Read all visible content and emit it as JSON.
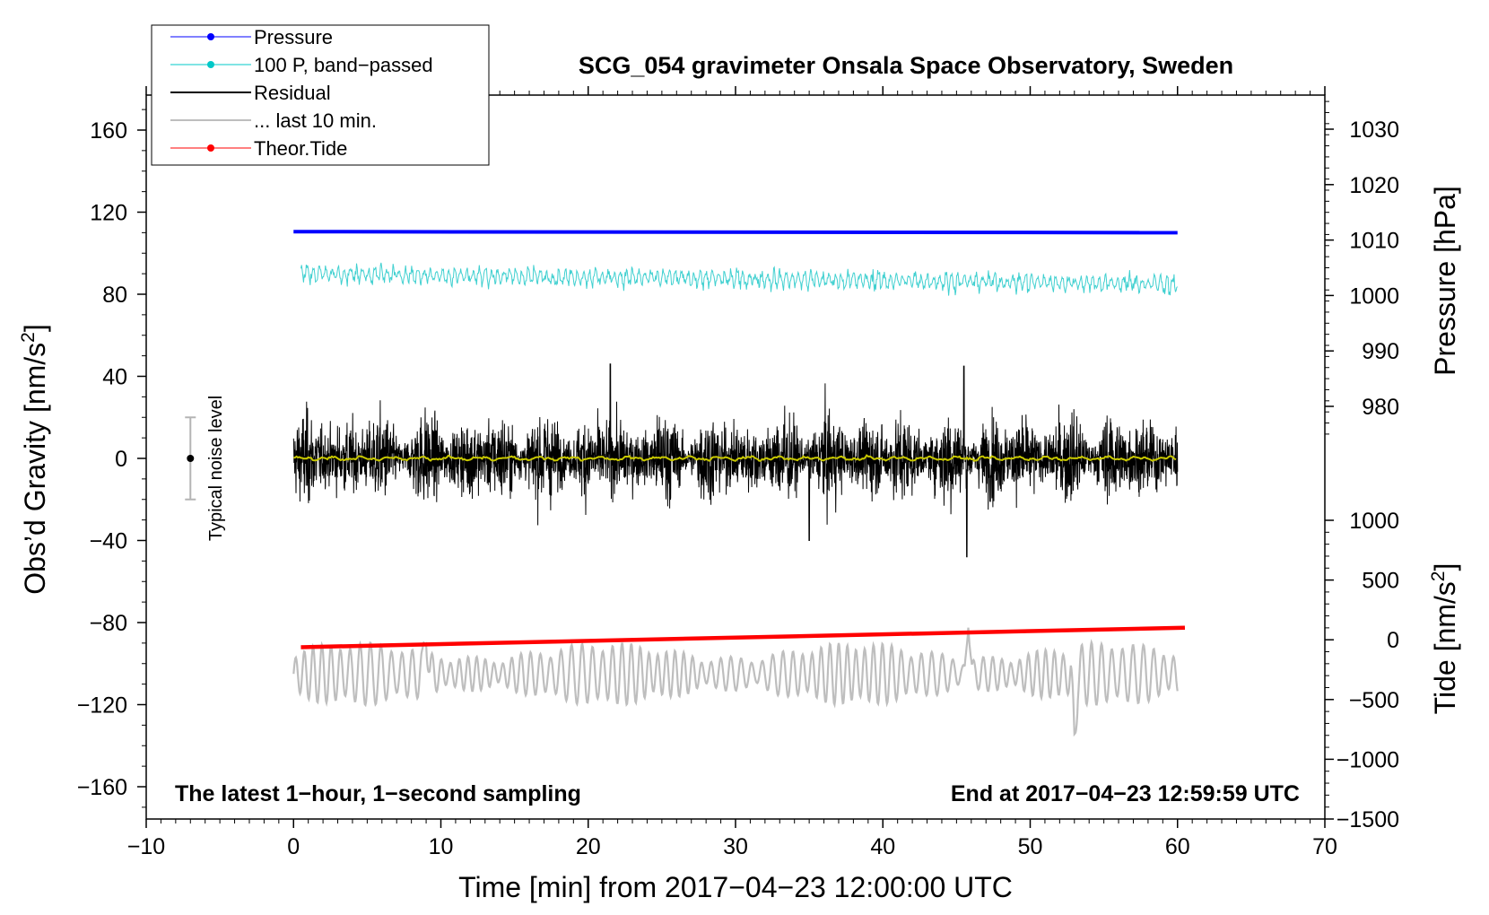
{
  "chart_data": {
    "type": "line",
    "title": "SCG_054 gravimeter Onsala Space Observatory, Sweden",
    "xlabel": "Time [min] from 2017−04−23 12:00:00 UTC",
    "ylabel_left_main": "Obs’d Gravity [nm/s",
    "ylabel_left_sup": "2",
    "ylabel_left_end": "]",
    "ylabel_right_pressure": "Pressure [hPa]",
    "ylabel_right_tide_main": "Tide [nm/s",
    "ylabel_right_tide_sup": "2",
    "ylabel_right_tide_end": "]",
    "xlim": [
      -10,
      70
    ],
    "ylim_left": [
      -175,
      180
    ],
    "x_ticks": [
      -10,
      0,
      10,
      20,
      30,
      40,
      50,
      60,
      70
    ],
    "x_tick_labels": [
      "−10",
      "0",
      "10",
      "20",
      "30",
      "40",
      "50",
      "60",
      "70"
    ],
    "y_left_ticks": [
      160,
      120,
      80,
      40,
      0,
      -40,
      -80,
      -120,
      -160
    ],
    "y_left_tick_labels": [
      "160",
      "120",
      "80",
      "40",
      "0",
      "−40",
      "−80",
      "−120",
      "−160"
    ],
    "pressure_ticks": [
      1030,
      1020,
      1010,
      1000,
      990,
      980
    ],
    "pressure_tick_labels": [
      "1030",
      "1020",
      "1010",
      "1000",
      "990",
      "980"
    ],
    "tide_ticks": [
      1000,
      500,
      0,
      -500,
      -1000,
      -1500
    ],
    "tide_tick_labels": [
      "1000",
      "500",
      "0",
      "−500",
      "−1000",
      "−1500"
    ],
    "annotation_left": "The latest 1−hour, 1−second sampling",
    "annotation_right": "End at 2017−04−23 12:59:59 UTC",
    "noise_label": "Typical noise level",
    "noise_bar": {
      "x": -7,
      "center": 0,
      "half_range": 20
    },
    "legend": [
      {
        "label": "Pressure",
        "color": "#0000ff",
        "marker": true
      },
      {
        "label": "100 P, band−passed",
        "color": "#00c8c8",
        "marker": true
      },
      {
        "label": "Residual",
        "color": "#000000",
        "marker": false
      },
      {
        "label": "... last 10 min.",
        "color": "#bebebe",
        "marker": false
      },
      {
        "label": "Theor.Tide",
        "color": "#ff0000",
        "marker": true
      }
    ],
    "series": [
      {
        "name": "Pressure",
        "color": "#0000ff",
        "x_range": [
          0,
          60
        ],
        "level_nm_s2": 110.5,
        "level_end": 110.0
      },
      {
        "name": "100 P, band-passed",
        "color": "#40d0d0",
        "x_range": [
          0.5,
          60
        ],
        "mean_start": 90,
        "mean_end": 85,
        "amplitude": 5
      },
      {
        "name": "Residual",
        "color": "#000000",
        "x_range": [
          0,
          60
        ],
        "mean": 0,
        "amplitude": 15,
        "peaks": [
          {
            "x": 21.5,
            "y": 46
          },
          {
            "x": 45.5,
            "y": 45
          },
          {
            "x": 45.7,
            "y": -48
          },
          {
            "x": 35,
            "y": -40
          }
        ]
      },
      {
        "name": "Residual smoothed",
        "color": "#c8c800",
        "x_range": [
          0,
          60
        ],
        "mean": 0
      },
      {
        "name": "... last 10 min.",
        "color": "#bebebe",
        "x_range": [
          0,
          60
        ],
        "mean": -105,
        "amplitude": 12,
        "peaks": [
          {
            "x": 9,
            "y": -78
          },
          {
            "x": 45.8,
            "y": -72
          },
          {
            "x": 53,
            "y": -143
          }
        ]
      },
      {
        "name": "Theor.Tide",
        "color": "#ff0000",
        "x": [
          0.5,
          60.5
        ],
        "y_nm_s2": [
          -92,
          -82.5
        ]
      }
    ],
    "colors": {
      "pressure": "#0000ff",
      "bandpassed": "#40d0d0",
      "residual": "#000000",
      "smoothed": "#c8c800",
      "last10": "#bebebe",
      "tide": "#ff0000",
      "noise": "#b4b4b4"
    }
  }
}
